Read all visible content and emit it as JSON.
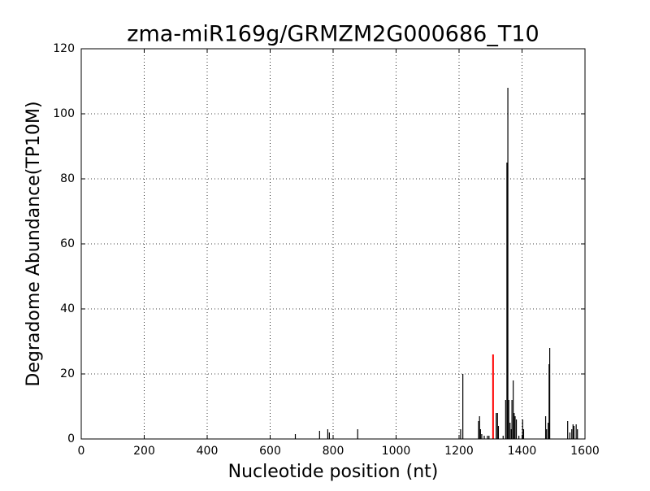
{
  "chart_data": {
    "type": "bar",
    "title": "zma-miR169g/GRMZM2G000686_T10",
    "x_label": "Nucleotide position (nt)",
    "y_label": "Degradome Abundance(TP10M)",
    "xlim": [
      0,
      1600
    ],
    "xticks": [
      0,
      200,
      400,
      600,
      800,
      1000,
      1200,
      1400,
      1600
    ],
    "ylim": [
      0,
      120
    ],
    "yticks": [
      0,
      20,
      40,
      60,
      80,
      100,
      120
    ],
    "grid": true,
    "series": [
      {
        "color": "#000000",
        "x": [
          680,
          757,
          783,
          788,
          878,
          1205,
          1212,
          1262,
          1265,
          1268,
          1272,
          1280,
          1290,
          1295,
          1318,
          1322,
          1325,
          1340,
          1348,
          1352,
          1355,
          1358,
          1362,
          1366,
          1368,
          1372,
          1375,
          1378,
          1382,
          1390,
          1402,
          1405,
          1475,
          1478,
          1483,
          1486,
          1488,
          1545,
          1552,
          1558,
          1562,
          1565,
          1572,
          1576
        ],
        "values": [
          1.5,
          2.5,
          3,
          2,
          3,
          3,
          20,
          5.5,
          7,
          3,
          1.5,
          1,
          1,
          1,
          8,
          8,
          4,
          1,
          12,
          85,
          108,
          12,
          5,
          3,
          12,
          18,
          8,
          7,
          6,
          1,
          6,
          3,
          7,
          3,
          5,
          23,
          28,
          5.5,
          2,
          3,
          4.5,
          4,
          4.5,
          3
        ]
      },
      {
        "color": "#ff0000",
        "x": [
          1308
        ],
        "values": [
          26
        ]
      }
    ]
  }
}
